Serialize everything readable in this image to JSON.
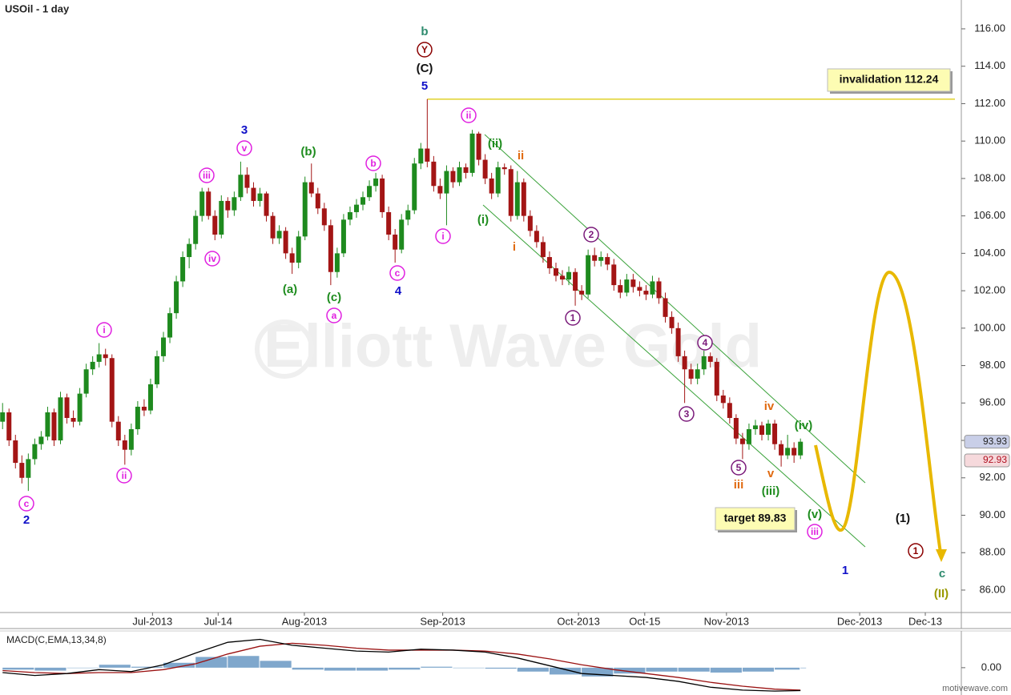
{
  "chart_data": {
    "type": "candlestick",
    "title": "USOil - 1 day",
    "up_color": "#1e8a1e",
    "down_color": "#a31515",
    "ohlc": [
      [
        95.0,
        96.0,
        94.6,
        95.5
      ],
      [
        95.5,
        95.7,
        93.7,
        94.0
      ],
      [
        94.0,
        94.3,
        92.5,
        92.8
      ],
      [
        92.8,
        93.2,
        91.7,
        92.0
      ],
      [
        92.0,
        93.3,
        91.3,
        93.0
      ],
      [
        93.0,
        94.1,
        92.7,
        93.8
      ],
      [
        93.8,
        94.5,
        93.5,
        94.2
      ],
      [
        94.2,
        95.8,
        94.0,
        95.5
      ],
      [
        95.5,
        95.7,
        93.7,
        94.0
      ],
      [
        94.0,
        96.6,
        93.8,
        96.3
      ],
      [
        96.3,
        96.5,
        94.9,
        95.2
      ],
      [
        95.2,
        95.6,
        94.7,
        95.0
      ],
      [
        95.0,
        96.8,
        94.8,
        96.5
      ],
      [
        96.5,
        98.1,
        96.3,
        97.8
      ],
      [
        97.8,
        98.5,
        97.5,
        98.2
      ],
      [
        98.2,
        99.2,
        97.9,
        98.6
      ],
      [
        98.6,
        98.9,
        98.0,
        98.4
      ],
      [
        98.4,
        98.6,
        94.7,
        95.0
      ],
      [
        95.0,
        95.3,
        93.7,
        94.0
      ],
      [
        94.0,
        94.3,
        92.7,
        93.5
      ],
      [
        93.5,
        94.9,
        93.2,
        94.6
      ],
      [
        94.6,
        96.1,
        94.3,
        95.8
      ],
      [
        95.8,
        96.2,
        95.3,
        95.6
      ],
      [
        95.6,
        97.3,
        95.4,
        97.0
      ],
      [
        97.0,
        98.8,
        96.8,
        98.5
      ],
      [
        98.5,
        99.8,
        98.2,
        99.5
      ],
      [
        99.5,
        101.1,
        99.2,
        100.8
      ],
      [
        100.8,
        102.8,
        100.5,
        102.5
      ],
      [
        102.5,
        104.1,
        102.2,
        103.8
      ],
      [
        103.8,
        104.8,
        103.2,
        104.5
      ],
      [
        104.5,
        106.3,
        104.2,
        106.0
      ],
      [
        106.0,
        107.5,
        105.7,
        107.3
      ],
      [
        107.3,
        107.5,
        105.8,
        106.0
      ],
      [
        106.0,
        106.3,
        104.7,
        105.0
      ],
      [
        105.0,
        107.1,
        104.8,
        106.8
      ],
      [
        106.8,
        107.0,
        105.9,
        106.3
      ],
      [
        106.3,
        107.3,
        106.0,
        107.0
      ],
      [
        107.0,
        108.9,
        106.8,
        108.2
      ],
      [
        108.2,
        108.6,
        107.2,
        107.5
      ],
      [
        107.5,
        107.8,
        106.5,
        106.8
      ],
      [
        106.8,
        107.5,
        106.5,
        107.2
      ],
      [
        107.2,
        107.3,
        105.7,
        106.0
      ],
      [
        106.0,
        106.2,
        104.5,
        104.8
      ],
      [
        104.8,
        105.5,
        104.5,
        105.2
      ],
      [
        105.2,
        105.4,
        103.7,
        104.0
      ],
      [
        104.0,
        104.3,
        102.9,
        103.5
      ],
      [
        103.5,
        105.2,
        103.2,
        104.9
      ],
      [
        104.9,
        108.1,
        104.7,
        107.8
      ],
      [
        107.8,
        108.8,
        107.0,
        107.2
      ],
      [
        107.2,
        107.5,
        106.1,
        106.4
      ],
      [
        106.4,
        106.7,
        105.2,
        105.5
      ],
      [
        105.5,
        105.8,
        102.3,
        103.0
      ],
      [
        103.0,
        104.3,
        102.7,
        104.0
      ],
      [
        104.0,
        106.1,
        103.8,
        105.8
      ],
      [
        105.8,
        106.5,
        105.5,
        106.2
      ],
      [
        106.2,
        106.9,
        105.9,
        106.6
      ],
      [
        106.6,
        107.3,
        106.3,
        107.0
      ],
      [
        107.0,
        107.9,
        106.8,
        107.6
      ],
      [
        107.6,
        108.3,
        107.3,
        108.0
      ],
      [
        108.0,
        108.2,
        105.9,
        106.2
      ],
      [
        106.2,
        106.5,
        104.7,
        105.0
      ],
      [
        105.0,
        105.3,
        103.5,
        104.2
      ],
      [
        104.2,
        106.1,
        104.0,
        105.8
      ],
      [
        105.8,
        106.6,
        105.5,
        106.3
      ],
      [
        106.3,
        109.1,
        106.1,
        108.8
      ],
      [
        108.8,
        109.9,
        108.5,
        109.6
      ],
      [
        109.6,
        112.24,
        108.6,
        108.9
      ],
      [
        108.9,
        109.2,
        107.3,
        107.6
      ],
      [
        107.6,
        108.0,
        106.9,
        107.2
      ],
      [
        107.2,
        108.7,
        105.5,
        108.4
      ],
      [
        108.4,
        108.6,
        107.5,
        107.8
      ],
      [
        107.8,
        108.9,
        107.6,
        108.6
      ],
      [
        108.6,
        108.8,
        108.0,
        108.3
      ],
      [
        108.3,
        110.6,
        108.1,
        110.4
      ],
      [
        110.4,
        110.5,
        108.7,
        109.0
      ],
      [
        109.0,
        109.3,
        107.7,
        108.0
      ],
      [
        108.0,
        108.3,
        106.9,
        107.2
      ],
      [
        107.2,
        108.9,
        107.0,
        108.6
      ],
      [
        108.6,
        108.8,
        108.2,
        108.5
      ],
      [
        108.5,
        108.7,
        105.7,
        106.0
      ],
      [
        106.0,
        108.4,
        105.8,
        107.8
      ],
      [
        107.8,
        108.0,
        105.7,
        106.0
      ],
      [
        106.0,
        106.3,
        104.9,
        105.2
      ],
      [
        105.2,
        105.5,
        104.3,
        104.6
      ],
      [
        104.6,
        104.9,
        103.5,
        103.8
      ],
      [
        103.8,
        104.1,
        102.9,
        103.2
      ],
      [
        103.2,
        103.5,
        102.5,
        102.8
      ],
      [
        102.8,
        103.1,
        102.3,
        102.6
      ],
      [
        102.6,
        103.3,
        102.3,
        103.0
      ],
      [
        103.0,
        103.2,
        101.2,
        102.0
      ],
      [
        102.0,
        102.3,
        101.5,
        101.8
      ],
      [
        101.8,
        104.2,
        101.6,
        103.9
      ],
      [
        103.9,
        104.3,
        103.3,
        103.6
      ],
      [
        103.6,
        104.1,
        103.3,
        103.8
      ],
      [
        103.8,
        104.0,
        103.1,
        103.4
      ],
      [
        103.4,
        103.7,
        102.0,
        102.3
      ],
      [
        102.3,
        102.6,
        101.6,
        101.9
      ],
      [
        101.9,
        102.9,
        101.7,
        102.6
      ],
      [
        102.6,
        102.9,
        101.9,
        102.2
      ],
      [
        102.2,
        102.5,
        101.7,
        102.0
      ],
      [
        102.0,
        102.3,
        101.5,
        101.8
      ],
      [
        101.8,
        102.8,
        101.6,
        102.5
      ],
      [
        102.5,
        102.7,
        101.3,
        101.6
      ],
      [
        101.6,
        101.9,
        100.3,
        100.6
      ],
      [
        100.6,
        100.9,
        99.7,
        100.0
      ],
      [
        100.0,
        100.3,
        98.2,
        98.5
      ],
      [
        98.5,
        98.8,
        96.0,
        97.8
      ],
      [
        97.8,
        98.1,
        97.0,
        97.3
      ],
      [
        97.3,
        98.1,
        97.0,
        97.8
      ],
      [
        97.8,
        98.8,
        97.5,
        98.5
      ],
      [
        98.5,
        98.7,
        97.9,
        98.2
      ],
      [
        98.2,
        98.4,
        96.1,
        96.4
      ],
      [
        96.4,
        96.7,
        95.7,
        96.0
      ],
      [
        96.0,
        96.3,
        94.9,
        95.2
      ],
      [
        95.2,
        95.4,
        93.8,
        94.1
      ],
      [
        94.1,
        94.4,
        93.0,
        93.8
      ],
      [
        93.8,
        94.9,
        93.5,
        94.6
      ],
      [
        94.6,
        95.1,
        94.3,
        94.8
      ],
      [
        94.8,
        95.0,
        94.0,
        94.3
      ],
      [
        94.3,
        95.1,
        94.0,
        94.9
      ],
      [
        94.9,
        95.1,
        93.5,
        93.8
      ],
      [
        93.8,
        94.0,
        92.6,
        93.2
      ],
      [
        93.2,
        94.3,
        93.0,
        93.6
      ],
      [
        93.6,
        93.9,
        92.8,
        93.2
      ],
      [
        93.2,
        94.1,
        93.0,
        93.93
      ]
    ],
    "xlim": [
      -0.4,
      149
    ],
    "xticks": [
      {
        "value": 23.3,
        "label": "Jul-2013"
      },
      {
        "value": 33.5,
        "label": "Jul-14"
      },
      {
        "value": 46.9,
        "label": "Aug-2013"
      },
      {
        "value": 68.4,
        "label": "Sep-2013"
      },
      {
        "value": 89.5,
        "label": "Oct-2013"
      },
      {
        "value": 99.8,
        "label": "Oct-15"
      },
      {
        "value": 112.5,
        "label": "Nov-2013"
      },
      {
        "value": 133.2,
        "label": "Dec-2013"
      },
      {
        "value": 143.4,
        "label": "Dec-13"
      }
    ],
    "ylim": [
      84.8,
      117.54
    ],
    "yticks": [
      {
        "value": 86,
        "label": "86.00"
      },
      {
        "value": 88,
        "label": "88.00"
      },
      {
        "value": 90,
        "label": "90.00"
      },
      {
        "value": 92,
        "label": "92.00"
      },
      {
        "value": 94,
        "label": "94.00"
      },
      {
        "value": 96,
        "label": "96.00"
      },
      {
        "value": 98,
        "label": "98.00"
      },
      {
        "value": 100,
        "label": "100.00"
      },
      {
        "value": 102,
        "label": "102.00"
      },
      {
        "value": 104,
        "label": "104.00"
      },
      {
        "value": 106,
        "label": "106.00"
      },
      {
        "value": 108,
        "label": "108.00"
      },
      {
        "value": 110,
        "label": "110.00"
      },
      {
        "value": 112,
        "label": "112.00"
      },
      {
        "value": 114,
        "label": "114.00"
      },
      {
        "value": 116,
        "label": "116.00"
      }
    ],
    "price_labels": [
      93.93,
      92.93
    ],
    "invalidation": {
      "value": 112.24,
      "label": "invalidation 112.24",
      "color": "#d8c800"
    },
    "target_label": "target 89.83",
    "wave_labels": [
      {
        "text": "b",
        "color": "#2e8b6e",
        "circled": false
      },
      {
        "text": "Y",
        "color": "#8b0000",
        "circled": true
      },
      {
        "text": "(C)",
        "color": "#111111",
        "circled": false
      },
      {
        "text": "5",
        "color": "#1010c8",
        "circled": false
      },
      {
        "text": "ii",
        "color": "#e020e0",
        "circled": true
      },
      {
        "text": "3",
        "color": "#1010c8",
        "circled": false
      },
      {
        "text": "v",
        "color": "#e020e0",
        "circled": true
      },
      {
        "text": "(b)",
        "color": "#1e8c1e",
        "circled": false
      },
      {
        "text": "iii",
        "color": "#e020e0",
        "circled": true
      },
      {
        "text": "b",
        "color": "#e020e0",
        "circled": true
      },
      {
        "text": "(ii)",
        "color": "#1e8c1e",
        "circled": false
      },
      {
        "text": "ii",
        "color": "#e06a10",
        "circled": false
      },
      {
        "text": "(i)",
        "color": "#1e8c1e",
        "circled": false
      },
      {
        "text": "i",
        "color": "#e020e0",
        "circled": true
      },
      {
        "text": "i",
        "color": "#e06a10",
        "circled": false
      },
      {
        "text": "iv",
        "color": "#e020e0",
        "circled": true
      },
      {
        "text": "2",
        "color": "#7a1a7a",
        "circled": true
      },
      {
        "text": "c",
        "color": "#e020e0",
        "circled": true
      },
      {
        "text": "(a)",
        "color": "#1e8c1e",
        "circled": false
      },
      {
        "text": "(c)",
        "color": "#1e8c1e",
        "circled": false
      },
      {
        "text": "4",
        "color": "#1010c8",
        "circled": false
      },
      {
        "text": "a",
        "color": "#e020e0",
        "circled": true
      },
      {
        "text": "1",
        "color": "#7a1a7a",
        "circled": true
      },
      {
        "text": "i",
        "color": "#e020e0",
        "circled": true
      },
      {
        "text": "4",
        "color": "#7a1a7a",
        "circled": true
      },
      {
        "text": "3",
        "color": "#7a1a7a",
        "circled": true
      },
      {
        "text": "iv",
        "color": "#e06a10",
        "circled": false
      },
      {
        "text": "(iv)",
        "color": "#1e8c1e",
        "circled": false
      },
      {
        "text": "ii",
        "color": "#e020e0",
        "circled": true
      },
      {
        "text": "5",
        "color": "#7a1a7a",
        "circled": true
      },
      {
        "text": "v",
        "color": "#e06a10",
        "circled": false
      },
      {
        "text": "iii",
        "color": "#e06a10",
        "circled": false
      },
      {
        "text": "(iii)",
        "color": "#1e8c1e",
        "circled": false
      },
      {
        "text": "c",
        "color": "#e020e0",
        "circled": true
      },
      {
        "text": "2",
        "color": "#1010c8",
        "circled": false
      },
      {
        "text": "(v)",
        "color": "#1e8c1e",
        "circled": false
      },
      {
        "text": "iii",
        "color": "#e020e0",
        "circled": true
      },
      {
        "text": "(1)",
        "color": "#111111",
        "circled": false
      },
      {
        "text": "1",
        "color": "#8b0000",
        "circled": true
      },
      {
        "text": "1",
        "color": "#1010c8",
        "circled": false
      },
      {
        "text": "c",
        "color": "#2e8b6e",
        "circled": false
      },
      {
        "text": "(II)",
        "color": "#9a9a00",
        "circled": false
      }
    ],
    "watermark": "Elliott Wave Gold",
    "footer": "motivewave.com",
    "macd": {
      "type": "line",
      "title": "MACD(C,EMA,13,34,8)",
      "x": [
        0,
        5,
        10,
        15,
        20,
        25,
        30,
        35,
        40,
        45,
        50,
        55,
        60,
        65,
        70,
        75,
        80,
        85,
        90,
        95,
        100,
        105,
        110,
        115,
        120,
        124
      ],
      "ylim": [
        -2.8,
        3.6
      ],
      "yticks": [
        {
          "value": 0,
          "label": "0.00"
        }
      ],
      "macd_line": {
        "color": "#000000",
        "values": [
          -0.5,
          -0.8,
          -0.6,
          -0.2,
          -0.4,
          0.3,
          1.5,
          2.6,
          2.9,
          2.3,
          2.0,
          1.7,
          1.6,
          1.9,
          1.8,
          1.6,
          1.0,
          0.2,
          -0.6,
          -0.8,
          -1.0,
          -1.4,
          -2.0,
          -2.3,
          -2.4,
          -2.35
        ]
      },
      "signal_line": {
        "color": "#9a1010",
        "values": [
          -0.3,
          -0.5,
          -0.6,
          -0.5,
          -0.5,
          -0.2,
          0.4,
          1.4,
          2.2,
          2.5,
          2.3,
          2.0,
          1.8,
          1.8,
          1.8,
          1.7,
          1.4,
          0.9,
          0.3,
          -0.2,
          -0.6,
          -1.0,
          -1.5,
          -1.9,
          -2.2,
          -2.3
        ]
      },
      "histogram": {
        "color": "#7fa7cc",
        "values": [
          -0.2,
          -0.3,
          0.0,
          0.3,
          0.1,
          0.5,
          1.1,
          1.2,
          0.7,
          -0.2,
          -0.3,
          -0.3,
          -0.2,
          0.1,
          0.0,
          -0.1,
          -0.4,
          -0.7,
          -0.9,
          -0.6,
          -0.4,
          -0.4,
          -0.5,
          -0.4,
          -0.2,
          -0.05
        ]
      }
    }
  }
}
